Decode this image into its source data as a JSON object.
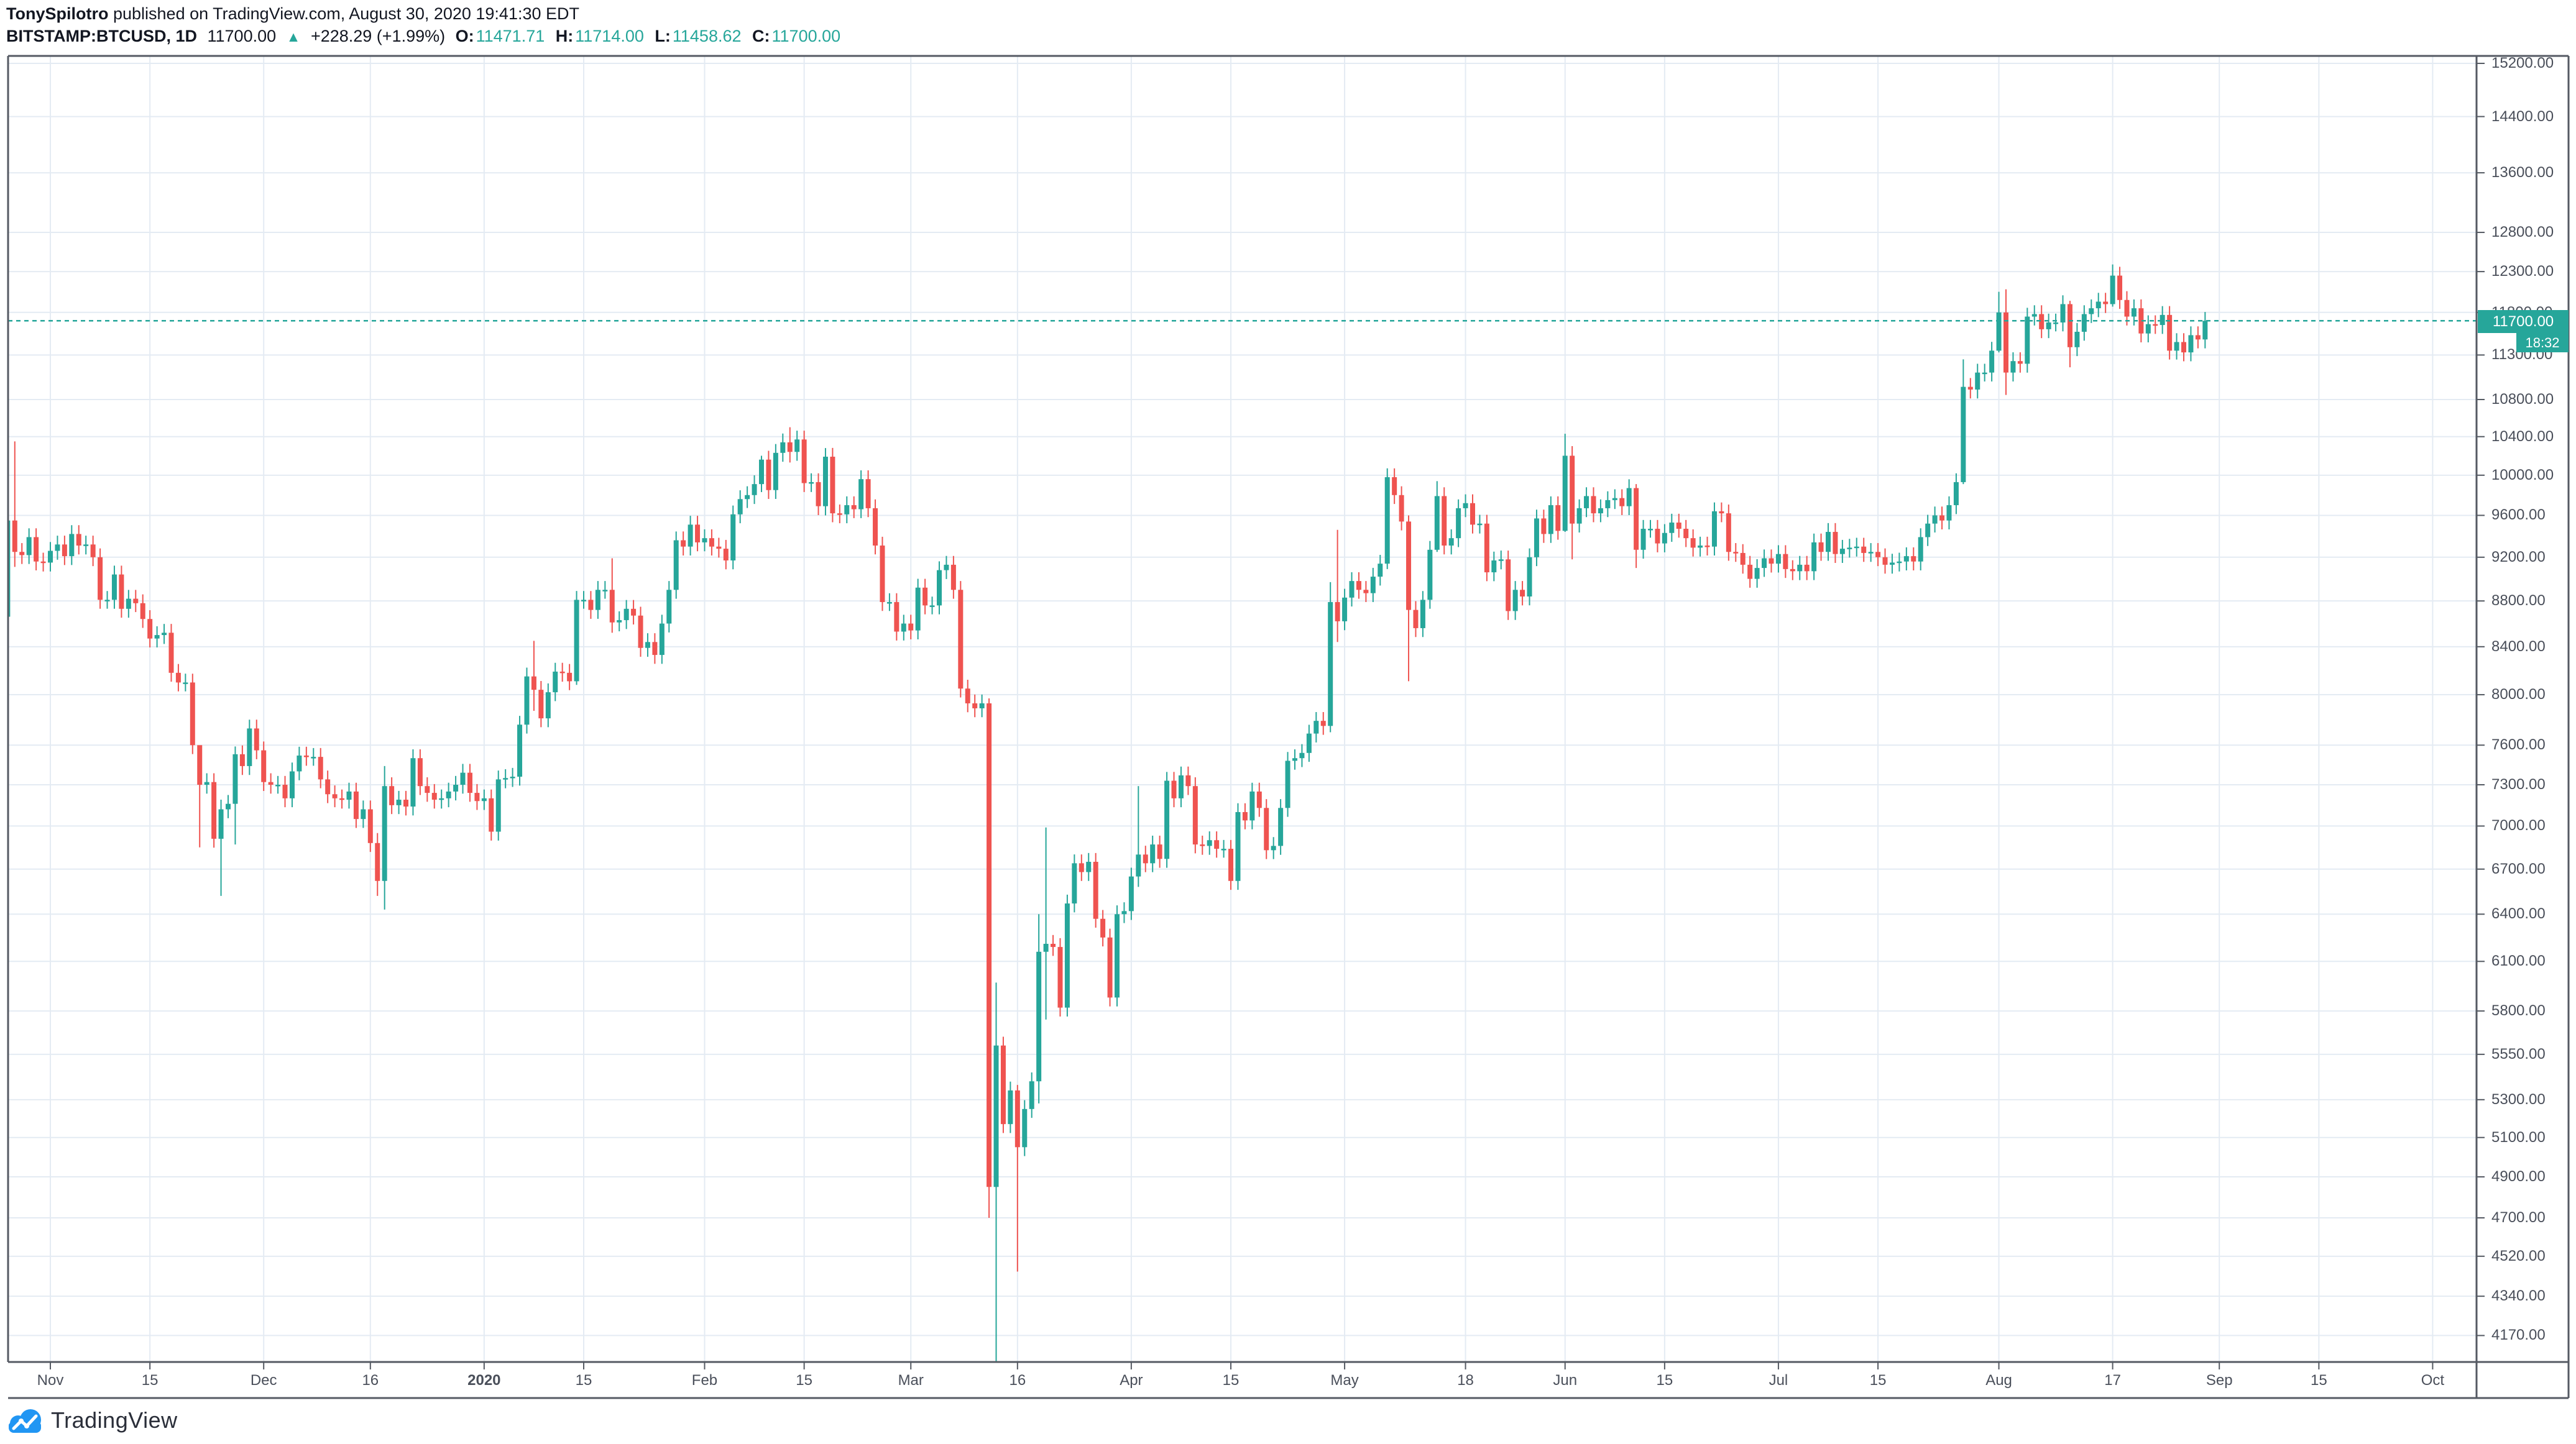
{
  "header": {
    "author": "TonySpilotro",
    "published": " published on TradingView.com, August 30, 2020 19:41:30 EDT",
    "symbol": "BITSTAMP:BTCUSD, 1D",
    "last_price": "11700.00",
    "up_arrow": "▲",
    "change": "+228.29 (+1.99%)",
    "o_label": "O:",
    "o_value": "11471.71",
    "h_label": "H:",
    "h_value": "11714.00",
    "l_label": "L:",
    "l_value": "11458.62",
    "c_label": "C:",
    "c_value": "11700.00"
  },
  "price_scale": {
    "ticks": [
      {
        "label": "15200.00",
        "value": 15200
      },
      {
        "label": "14400.00",
        "value": 14400
      },
      {
        "label": "13600.00",
        "value": 13600
      },
      {
        "label": "12800.00",
        "value": 12800
      },
      {
        "label": "12300.00",
        "value": 12300
      },
      {
        "label": "11800.00",
        "value": 11800
      },
      {
        "label": "11300.00",
        "value": 11300
      },
      {
        "label": "10800.00",
        "value": 10800
      },
      {
        "label": "10400.00",
        "value": 10400
      },
      {
        "label": "10000.00",
        "value": 10000
      },
      {
        "label": "9600.00",
        "value": 9600
      },
      {
        "label": "9200.00",
        "value": 9200
      },
      {
        "label": "8800.00",
        "value": 8800
      },
      {
        "label": "8400.00",
        "value": 8400
      },
      {
        "label": "8000.00",
        "value": 8000
      },
      {
        "label": "7600.00",
        "value": 7600
      },
      {
        "label": "7300.00",
        "value": 7300
      },
      {
        "label": "7000.00",
        "value": 7000
      },
      {
        "label": "6700.00",
        "value": 6700
      },
      {
        "label": "6400.00",
        "value": 6400
      },
      {
        "label": "6100.00",
        "value": 6100
      },
      {
        "label": "5800.00",
        "value": 5800
      },
      {
        "label": "5550.00",
        "value": 5550
      },
      {
        "label": "5300.00",
        "value": 5300
      },
      {
        "label": "5100.00",
        "value": 5100
      },
      {
        "label": "4900.00",
        "value": 4900
      },
      {
        "label": "4700.00",
        "value": 4700
      },
      {
        "label": "4520.00",
        "value": 4520
      },
      {
        "label": "4340.00",
        "value": 4340
      },
      {
        "label": "4170.00",
        "value": 4170
      }
    ],
    "last_price_label": "11700.00",
    "countdown": "18:32",
    "last_price": 11700,
    "scale_type": "log"
  },
  "time_scale": {
    "ticks": [
      {
        "label": "Nov",
        "day": 0
      },
      {
        "label": "15",
        "day": 14
      },
      {
        "label": "Dec",
        "day": 30
      },
      {
        "label": "16",
        "day": 45
      },
      {
        "label": "2020",
        "day": 61,
        "bold": true
      },
      {
        "label": "15",
        "day": 75
      },
      {
        "label": "Feb",
        "day": 92
      },
      {
        "label": "15",
        "day": 106
      },
      {
        "label": "Mar",
        "day": 121
      },
      {
        "label": "16",
        "day": 136
      },
      {
        "label": "Apr",
        "day": 152
      },
      {
        "label": "15",
        "day": 166
      },
      {
        "label": "May",
        "day": 182
      },
      {
        "label": "18",
        "day": 199
      },
      {
        "label": "Jun",
        "day": 213
      },
      {
        "label": "15",
        "day": 227
      },
      {
        "label": "Jul",
        "day": 243
      },
      {
        "label": "15",
        "day": 257
      },
      {
        "label": "Aug",
        "day": 274
      },
      {
        "label": "17",
        "day": 290
      },
      {
        "label": "Sep",
        "day": 305
      },
      {
        "label": "15",
        "day": 319
      },
      {
        "label": "Oct",
        "day": 335
      }
    ]
  },
  "chart_data": {
    "type": "candlestick",
    "title": "BITSTAMP:BTCUSD daily",
    "interval": "1D",
    "scale": "log",
    "first_date": "2019-10-26",
    "days_before_nov1": 6,
    "first_open": 8660,
    "closes": [
      9550,
      9250,
      9220,
      9390,
      9160,
      9150,
      9260,
      9320,
      9210,
      9420,
      9310,
      9320,
      9200,
      8810,
      8810,
      9040,
      8730,
      8820,
      8780,
      8640,
      8470,
      8500,
      8520,
      8180,
      8100,
      8100,
      7600,
      7300,
      7320,
      6910,
      7120,
      7160,
      7530,
      7440,
      7730,
      7560,
      7320,
      7300,
      7300,
      7200,
      7400,
      7520,
      7510,
      7510,
      7340,
      7230,
      7200,
      7190,
      7250,
      7050,
      7120,
      6880,
      6620,
      7290,
      7150,
      7190,
      7140,
      7500,
      7290,
      7240,
      7190,
      7200,
      7250,
      7300,
      7390,
      7240,
      7180,
      7200,
      6960,
      7340,
      7350,
      7360,
      7760,
      8150,
      8040,
      7810,
      8020,
      8190,
      8180,
      8110,
      8810,
      8810,
      8720,
      8900,
      8900,
      8610,
      8630,
      8730,
      8670,
      8390,
      8440,
      8330,
      8600,
      8900,
      9360,
      9300,
      9510,
      9340,
      9380,
      9300,
      9280,
      9170,
      9610,
      9760,
      9800,
      9910,
      10160,
      9850,
      10230,
      10340,
      10240,
      10370,
      9920,
      9930,
      9690,
      10190,
      9620,
      9610,
      9700,
      9660,
      9960,
      9670,
      9310,
      8790,
      8790,
      8530,
      8600,
      8540,
      8920,
      8760,
      8760,
      9080,
      9130,
      8900,
      8050,
      7930,
      7890,
      7930,
      4850,
      5600,
      5170,
      5350,
      5050,
      5250,
      5400,
      6160,
      6210,
      6190,
      5820,
      6470,
      6740,
      6680,
      6750,
      6370,
      6250,
      5880,
      6400,
      6420,
      6650,
      6800,
      6740,
      6870,
      6770,
      7330,
      7200,
      7370,
      7290,
      6870,
      6860,
      6900,
      6840,
      6840,
      6620,
      7100,
      7040,
      7250,
      7130,
      6830,
      6860,
      7130,
      7480,
      7500,
      7540,
      7690,
      7790,
      7750,
      8790,
      8620,
      8830,
      8980,
      8900,
      8870,
      9020,
      9140,
      9980,
      9800,
      9540,
      8720,
      8560,
      8810,
      9270,
      9790,
      9310,
      9380,
      9670,
      9720,
      9510,
      9520,
      9060,
      9170,
      9180,
      8710,
      8900,
      8840,
      9200,
      9570,
      9420,
      9700,
      9450,
      10200,
      9520,
      9670,
      9790,
      9620,
      9670,
      9750,
      9770,
      9690,
      9870,
      9270,
      9470,
      9470,
      9330,
      9430,
      9530,
      9470,
      9380,
      9290,
      9310,
      9300,
      9640,
      9620,
      9250,
      9240,
      9130,
      9000,
      9100,
      9190,
      9140,
      9230,
      9090,
      9070,
      9130,
      9070,
      9340,
      9250,
      9440,
      9230,
      9280,
      9290,
      9300,
      9240,
      9250,
      9200,
      9130,
      9150,
      9160,
      9210,
      9160,
      9390,
      9520,
      9600,
      9550,
      9700,
      9930,
      10940,
      10910,
      11100,
      11100,
      11350,
      11800,
      11100,
      11230,
      11200,
      11750,
      11780,
      11600,
      11680,
      11680,
      11900,
      11390,
      11570,
      11780,
      11850,
      11930,
      11900,
      12250,
      11950,
      11750,
      11850,
      11550,
      11660,
      11650,
      11770,
      11350,
      11450,
      11330,
      11530,
      11480,
      11700
    ],
    "wick_overrides": {
      "0": [
        9800,
        8560
      ],
      "1": [
        10350,
        9110
      ],
      "27": [
        7450,
        6850
      ],
      "30": [
        7190,
        6520
      ],
      "32": [
        7590,
        6870
      ],
      "52": [
        6950,
        6520
      ],
      "53": [
        7440,
        6430
      ],
      "74": [
        8450,
        7870
      ],
      "80": [
        8890,
        8080
      ],
      "85": [
        9190,
        8520
      ],
      "106": [
        10200,
        9830
      ],
      "110": [
        10500,
        10130
      ],
      "115": [
        10280,
        9600
      ],
      "138": [
        7970,
        4700
      ],
      "139": [
        5970,
        3850
      ],
      "142": [
        5380,
        4450
      ],
      "145": [
        6400,
        5280
      ],
      "146": [
        6990,
        5750
      ],
      "159": [
        7290,
        6580
      ],
      "186": [
        8970,
        7700
      ],
      "187": [
        9460,
        8440
      ],
      "194": [
        10070,
        9090
      ],
      "197": [
        9600,
        8110
      ],
      "201": [
        9940,
        9250
      ],
      "219": [
        10430,
        9440
      ],
      "220": [
        10300,
        9180
      ],
      "229": [
        9910,
        9100
      ],
      "275": [
        11250,
        9910
      ],
      "280": [
        12050,
        11330
      ],
      "281": [
        12080,
        10850
      ],
      "290": [
        11940,
        11160
      ],
      "296": [
        12390,
        11870
      ]
    },
    "default_wick_pct": 0.9,
    "ylim": [
      4064,
      15390
    ],
    "grid": true
  },
  "colors": {
    "up": "#26a69a",
    "down": "#ef5350",
    "last_price_line": "#26a69a",
    "label_bg": "#26a69a",
    "grid": "#e4ebf3",
    "border": "#555a63",
    "axis_text": "#4a4f5a",
    "header_text": "#131722",
    "logo_blue": "#2196f3"
  },
  "footer": {
    "brand": "TradingView"
  }
}
